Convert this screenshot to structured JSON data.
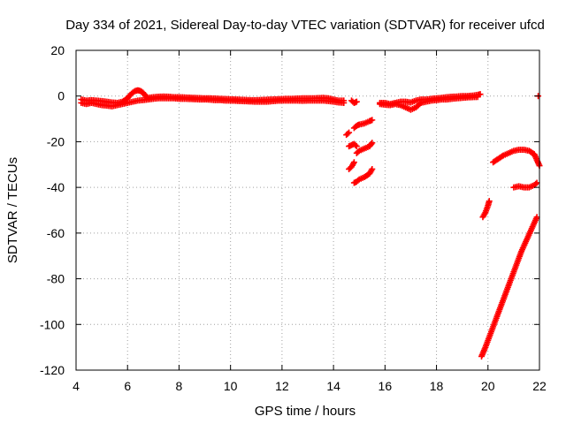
{
  "chart_data": {
    "type": "scatter",
    "title": "Day 334 of 2021, Sidereal Day-to-day VTEC variation (SDTVAR) for receiver ufcd",
    "xlabel": "GPS time / hours",
    "ylabel": "SDTVAR / TECUs",
    "xlim": [
      4,
      22
    ],
    "ylim": [
      -120,
      20
    ],
    "xticks": [
      4,
      6,
      8,
      10,
      12,
      14,
      16,
      18,
      20,
      22
    ],
    "yticks": [
      20,
      0,
      -20,
      -40,
      -60,
      -80,
      -100,
      -120
    ],
    "grid": true,
    "marker": "plus",
    "color": "#ff0000",
    "series": [
      {
        "name": "arc-main-a",
        "points": [
          [
            4.2,
            -3
          ],
          [
            4.4,
            -3.5
          ],
          [
            4.6,
            -3
          ],
          [
            4.8,
            -3.5
          ],
          [
            5.0,
            -4
          ],
          [
            5.2,
            -4.2
          ],
          [
            5.4,
            -4.5
          ],
          [
            5.6,
            -4
          ],
          [
            5.8,
            -3.5
          ],
          [
            6.0,
            -3
          ],
          [
            6.2,
            -2.5
          ],
          [
            6.4,
            -2
          ],
          [
            6.6,
            -1.8
          ],
          [
            6.8,
            -1.5
          ],
          [
            7.0,
            -1.2
          ],
          [
            7.2,
            -1
          ],
          [
            7.4,
            -1
          ],
          [
            7.6,
            -1
          ],
          [
            7.8,
            -1
          ],
          [
            8.0,
            -1.2
          ],
          [
            8.2,
            -1.2
          ],
          [
            8.4,
            -1.3
          ],
          [
            8.6,
            -1.4
          ],
          [
            8.8,
            -1.5
          ],
          [
            9.0,
            -1.5
          ],
          [
            9.2,
            -1.6
          ],
          [
            9.4,
            -1.8
          ],
          [
            9.6,
            -1.8
          ],
          [
            9.8,
            -2
          ],
          [
            10.0,
            -2
          ],
          [
            10.2,
            -2.1
          ],
          [
            10.4,
            -2.2
          ],
          [
            10.6,
            -2.3
          ],
          [
            10.8,
            -2.4
          ],
          [
            11.0,
            -2.5
          ],
          [
            11.2,
            -2.5
          ],
          [
            11.4,
            -2.5
          ],
          [
            11.6,
            -2.3
          ],
          [
            11.8,
            -2.1
          ],
          [
            12.0,
            -2
          ],
          [
            12.2,
            -2
          ],
          [
            12.4,
            -2
          ],
          [
            12.6,
            -2
          ],
          [
            12.8,
            -2.1
          ],
          [
            13.0,
            -2
          ],
          [
            13.2,
            -2
          ],
          [
            13.4,
            -2
          ],
          [
            13.6,
            -2
          ],
          [
            13.8,
            -2.2
          ],
          [
            14.0,
            -2.5
          ],
          [
            14.2,
            -2.8
          ],
          [
            14.4,
            -3
          ]
        ]
      },
      {
        "name": "arc-main-b",
        "points": [
          [
            4.2,
            -1.5
          ],
          [
            4.4,
            -2
          ],
          [
            4.6,
            -1.8
          ],
          [
            4.8,
            -2
          ],
          [
            5.0,
            -2.2
          ],
          [
            5.2,
            -2.5
          ],
          [
            5.4,
            -2.8
          ],
          [
            5.6,
            -3
          ],
          [
            5.8,
            -2.5
          ],
          [
            6.0,
            -1
          ],
          [
            6.1,
            0.5
          ],
          [
            6.2,
            1.5
          ],
          [
            6.3,
            2.2
          ],
          [
            6.4,
            2.5
          ],
          [
            6.5,
            2.2
          ],
          [
            6.6,
            1.5
          ],
          [
            6.7,
            0
          ],
          [
            6.8,
            -0.8
          ],
          [
            7.0,
            -0.5
          ],
          [
            7.2,
            -0.3
          ],
          [
            7.4,
            -0.2
          ],
          [
            7.6,
            -0.3
          ],
          [
            7.8,
            -0.5
          ],
          [
            8.0,
            -0.5
          ],
          [
            8.2,
            -0.6
          ],
          [
            8.4,
            -0.7
          ],
          [
            8.6,
            -0.8
          ],
          [
            8.8,
            -0.9
          ],
          [
            9.0,
            -1
          ],
          [
            9.2,
            -1
          ],
          [
            9.4,
            -1.1
          ],
          [
            9.6,
            -1.2
          ],
          [
            9.8,
            -1.3
          ],
          [
            10.0,
            -1.4
          ],
          [
            10.2,
            -1.5
          ],
          [
            10.4,
            -1.6
          ],
          [
            10.6,
            -1.7
          ],
          [
            10.8,
            -1.8
          ],
          [
            11.0,
            -1.8
          ],
          [
            11.2,
            -1.7
          ],
          [
            11.4,
            -1.6
          ],
          [
            11.6,
            -1.5
          ],
          [
            11.8,
            -1.4
          ],
          [
            12.0,
            -1.3
          ],
          [
            12.2,
            -1.2
          ],
          [
            12.4,
            -1.2
          ],
          [
            12.6,
            -1.1
          ],
          [
            12.8,
            -1
          ],
          [
            13.0,
            -1
          ],
          [
            13.2,
            -1
          ],
          [
            13.4,
            -0.9
          ],
          [
            13.6,
            -0.8
          ],
          [
            13.8,
            -1
          ],
          [
            14.0,
            -1.5
          ],
          [
            14.2,
            -2
          ],
          [
            14.4,
            -2
          ]
        ]
      },
      {
        "name": "arc-main-c",
        "points": [
          [
            14.7,
            -2
          ],
          [
            14.8,
            -3
          ],
          [
            14.9,
            -2.5
          ]
        ]
      },
      {
        "name": "arc-dip-1",
        "points": [
          [
            14.5,
            -17
          ],
          [
            14.6,
            -16
          ]
        ]
      },
      {
        "name": "arc-dip-2",
        "points": [
          [
            14.8,
            -14
          ],
          [
            14.9,
            -13
          ],
          [
            15.0,
            -12.5
          ],
          [
            15.2,
            -12
          ],
          [
            15.4,
            -11
          ],
          [
            15.5,
            -10.5
          ]
        ]
      },
      {
        "name": "arc-dip-3",
        "points": [
          [
            14.6,
            -22
          ],
          [
            14.7,
            -21.5
          ],
          [
            14.8,
            -21
          ],
          [
            14.9,
            -22
          ]
        ]
      },
      {
        "name": "arc-dip-4",
        "points": [
          [
            14.9,
            -25
          ],
          [
            15.0,
            -24
          ],
          [
            15.2,
            -23
          ],
          [
            15.4,
            -22
          ],
          [
            15.5,
            -20.5
          ]
        ]
      },
      {
        "name": "arc-dip-5",
        "points": [
          [
            14.6,
            -32
          ],
          [
            14.7,
            -31
          ],
          [
            14.8,
            -29
          ]
        ]
      },
      {
        "name": "arc-dip-6",
        "points": [
          [
            14.8,
            -38
          ],
          [
            14.9,
            -37.5
          ],
          [
            15.0,
            -36.5
          ],
          [
            15.2,
            -35.5
          ],
          [
            15.4,
            -34
          ],
          [
            15.5,
            -32
          ]
        ]
      },
      {
        "name": "arc-mid-a",
        "points": [
          [
            15.8,
            -3.5
          ],
          [
            16.0,
            -3.8
          ],
          [
            16.2,
            -4
          ],
          [
            16.4,
            -3.5
          ],
          [
            16.6,
            -4
          ],
          [
            16.8,
            -5
          ],
          [
            17.0,
            -6
          ],
          [
            17.2,
            -5
          ],
          [
            17.4,
            -3
          ],
          [
            17.6,
            -2.5
          ],
          [
            17.8,
            -2
          ],
          [
            18.0,
            -1.8
          ],
          [
            18.2,
            -1.5
          ],
          [
            18.4,
            -1.5
          ],
          [
            18.6,
            -1.2
          ],
          [
            18.8,
            -1
          ],
          [
            19.0,
            -0.8
          ],
          [
            19.2,
            -0.6
          ],
          [
            19.4,
            -0.5
          ],
          [
            19.6,
            -0.4
          ]
        ]
      },
      {
        "name": "arc-mid-b",
        "points": [
          [
            15.8,
            -3
          ],
          [
            16.0,
            -3
          ],
          [
            16.2,
            -3.5
          ],
          [
            16.4,
            -3
          ],
          [
            16.6,
            -2.5
          ],
          [
            16.8,
            -2.5
          ],
          [
            17.0,
            -2.8
          ],
          [
            17.2,
            -2
          ],
          [
            17.4,
            -1.5
          ],
          [
            17.6,
            -1.5
          ],
          [
            17.8,
            -1.2
          ],
          [
            18.0,
            -1
          ],
          [
            18.2,
            -0.8
          ],
          [
            18.4,
            -0.5
          ],
          [
            18.6,
            -0.3
          ],
          [
            18.8,
            -0.2
          ],
          [
            19.0,
            0
          ],
          [
            19.2,
            0
          ],
          [
            19.4,
            0.2
          ],
          [
            19.6,
            0.5
          ],
          [
            19.7,
            0.8
          ]
        ]
      },
      {
        "name": "arc-late-a",
        "points": [
          [
            19.8,
            -53
          ],
          [
            19.9,
            -51
          ],
          [
            20.0,
            -48
          ],
          [
            20.05,
            -46
          ]
        ]
      },
      {
        "name": "arc-late-b",
        "points": [
          [
            20.2,
            -29
          ],
          [
            20.4,
            -27.5
          ],
          [
            20.6,
            -26
          ],
          [
            20.8,
            -25
          ],
          [
            21.0,
            -24
          ],
          [
            21.2,
            -23.5
          ],
          [
            21.4,
            -23.5
          ],
          [
            21.6,
            -24
          ],
          [
            21.8,
            -25.5
          ],
          [
            21.9,
            -28
          ],
          [
            22.0,
            -30.5
          ]
        ]
      },
      {
        "name": "arc-late-c",
        "points": [
          [
            21.0,
            -40
          ],
          [
            21.2,
            -39.5
          ],
          [
            21.4,
            -40
          ],
          [
            21.6,
            -40
          ],
          [
            21.8,
            -39
          ],
          [
            21.9,
            -38
          ]
        ]
      },
      {
        "name": "arc-late-d",
        "points": [
          [
            19.75,
            -114
          ],
          [
            19.9,
            -110
          ],
          [
            20.1,
            -104
          ],
          [
            20.3,
            -98
          ],
          [
            20.5,
            -92
          ],
          [
            20.7,
            -86
          ],
          [
            20.9,
            -80
          ],
          [
            21.1,
            -74
          ],
          [
            21.3,
            -68
          ],
          [
            21.5,
            -63
          ],
          [
            21.7,
            -58
          ],
          [
            21.9,
            -53
          ]
        ]
      },
      {
        "name": "arc-late-e",
        "points": [
          [
            21.95,
            0
          ]
        ]
      }
    ]
  }
}
